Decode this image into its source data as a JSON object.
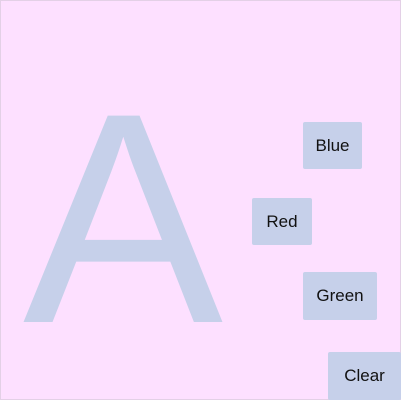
{
  "display": {
    "letter": "A",
    "letter_color": "#c6d0ea"
  },
  "colors": {
    "background": "#fde0ff",
    "button_bg": "#c6d0ea"
  },
  "buttons": {
    "blue": "Blue",
    "red": "Red",
    "green": "Green",
    "clear": "Clear"
  }
}
